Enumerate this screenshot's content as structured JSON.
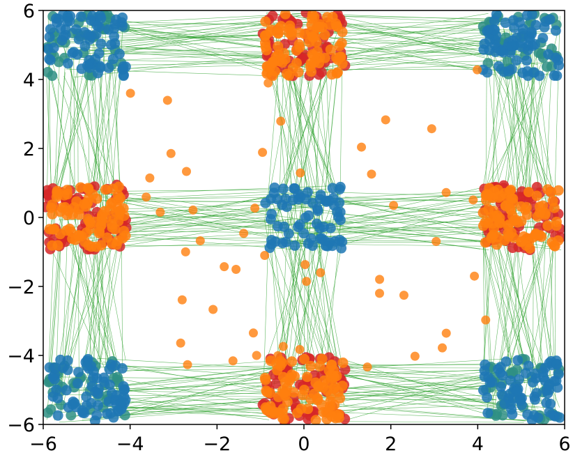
{
  "chart_data": {
    "type": "scatter",
    "title": "",
    "xlabel": "",
    "ylabel": "",
    "xlim": [
      -6,
      6
    ],
    "ylim": [
      -6,
      6
    ],
    "grid": false,
    "legend": "none",
    "x_ticks": [
      -6,
      -4,
      -2,
      0,
      2,
      4,
      6
    ],
    "y_ticks": [
      -6,
      -4,
      -2,
      0,
      2,
      4,
      6
    ],
    "x_tick_labels": [
      "−6",
      "−4",
      "−2",
      "0",
      "2",
      "4",
      "6"
    ],
    "y_tick_labels": [
      "−6",
      "−4",
      "−2",
      "0",
      "2",
      "4",
      "6"
    ],
    "colors": {
      "blue": "#1f77b4",
      "teal": "#2f8f84",
      "red": "#d62728",
      "orange": "#ff7f0e",
      "green": "#2ca02c"
    },
    "series": [
      {
        "color": "blue",
        "clusters": [
          [
            0,
            0
          ],
          [
            -5,
            -5
          ],
          [
            5,
            -5
          ],
          [
            -5,
            5
          ],
          [
            5,
            5
          ]
        ]
      },
      {
        "color": "red",
        "clusters": [
          [
            -5,
            0
          ],
          [
            5,
            0
          ],
          [
            0,
            5
          ],
          [
            0,
            -5
          ]
        ]
      },
      {
        "color": "orange",
        "clusters": [
          [
            -5,
            0
          ],
          [
            5,
            0
          ],
          [
            0,
            5
          ],
          [
            0,
            -5
          ]
        ]
      }
    ],
    "mappings": [
      {
        "from": [
          -5,
          5
        ],
        "to": [
          0,
          5
        ]
      },
      {
        "from": [
          5,
          5
        ],
        "to": [
          0,
          5
        ]
      },
      {
        "from": [
          -5,
          -5
        ],
        "to": [
          0,
          -5
        ]
      },
      {
        "from": [
          5,
          -5
        ],
        "to": [
          0,
          -5
        ]
      },
      {
        "from": [
          -5,
          5
        ],
        "to": [
          -5,
          0
        ]
      },
      {
        "from": [
          -5,
          -5
        ],
        "to": [
          -5,
          0
        ]
      },
      {
        "from": [
          5,
          5
        ],
        "to": [
          5,
          0
        ]
      },
      {
        "from": [
          5,
          -5
        ],
        "to": [
          5,
          0
        ]
      },
      {
        "from": [
          0,
          0
        ],
        "to": [
          -5,
          0
        ]
      },
      {
        "from": [
          0,
          0
        ],
        "to": [
          5,
          0
        ]
      },
      {
        "from": [
          0,
          0
        ],
        "to": [
          0,
          5
        ]
      },
      {
        "from": [
          0,
          0
        ],
        "to": [
          0,
          -5
        ]
      }
    ]
  }
}
